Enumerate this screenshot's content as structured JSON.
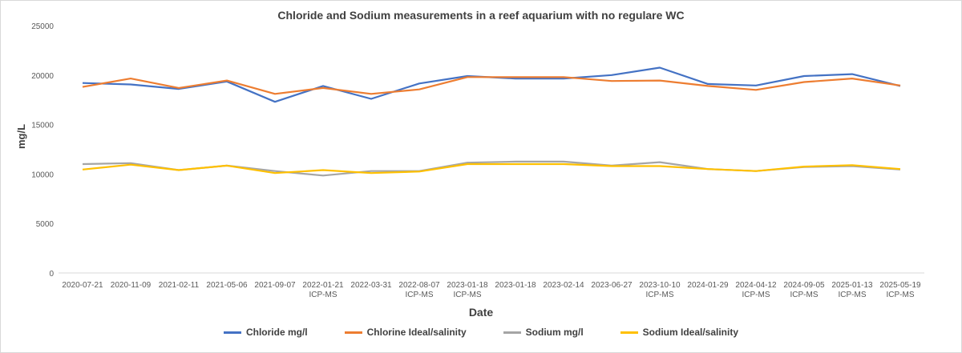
{
  "chart_data": {
    "type": "line",
    "title": "Chloride and Sodium measurements in a reef aquarium with no regulare WC",
    "xlabel": "Date",
    "ylabel": "mg/L",
    "ylim": [
      0,
      25000
    ],
    "yticks": [
      0,
      5000,
      10000,
      15000,
      20000,
      25000
    ],
    "grid": false,
    "legend": "bottom",
    "categories": [
      [
        "2020-07-21"
      ],
      [
        "2020-11-09"
      ],
      [
        "2021-02-11"
      ],
      [
        "2021-05-06"
      ],
      [
        "2021-09-07"
      ],
      [
        "2022-01-21",
        "ICP-MS"
      ],
      [
        "2022-03-31"
      ],
      [
        "2022-08-07",
        "ICP-MS"
      ],
      [
        "2023-01-18",
        "ICP-MS"
      ],
      [
        "2023-01-18"
      ],
      [
        "2023-02-14"
      ],
      [
        "2023-06-27"
      ],
      [
        "2023-10-10",
        "ICP-MS"
      ],
      [
        "2024-01-29"
      ],
      [
        "2024-04-12",
        "ICP-MS"
      ],
      [
        "2024-09-05",
        "ICP-MS"
      ],
      [
        "2025-01-13",
        "ICP-MS"
      ],
      [
        "2025-05-19",
        "ICP-MS"
      ]
    ],
    "series": [
      {
        "name": "Chloride mg/l",
        "color": "#4472c4",
        "values": [
          19200,
          19050,
          18600,
          19350,
          17300,
          18900,
          17600,
          19150,
          19900,
          19650,
          19650,
          20000,
          20750,
          19100,
          18950,
          19900,
          20100,
          18900
        ]
      },
      {
        "name": "Chlorine Ideal/salinity",
        "color": "#ed7d31",
        "values": [
          18800,
          19650,
          18700,
          19450,
          18100,
          18700,
          18100,
          18550,
          19800,
          19800,
          19800,
          19400,
          19450,
          18900,
          18500,
          19300,
          19650,
          18950
        ]
      },
      {
        "name": "Sodium mg/l",
        "color": "#a5a5a5",
        "values": [
          11000,
          11100,
          10400,
          10850,
          10300,
          9850,
          10300,
          10300,
          11150,
          11250,
          11250,
          10850,
          11200,
          10500,
          10300,
          10700,
          10800,
          10450
        ]
      },
      {
        "name": "Sodium Ideal/salinity",
        "color": "#ffc000",
        "values": [
          10450,
          10950,
          10400,
          10850,
          10100,
          10400,
          10100,
          10250,
          11000,
          11000,
          11000,
          10800,
          10800,
          10500,
          10300,
          10750,
          10900,
          10500
        ]
      }
    ]
  }
}
